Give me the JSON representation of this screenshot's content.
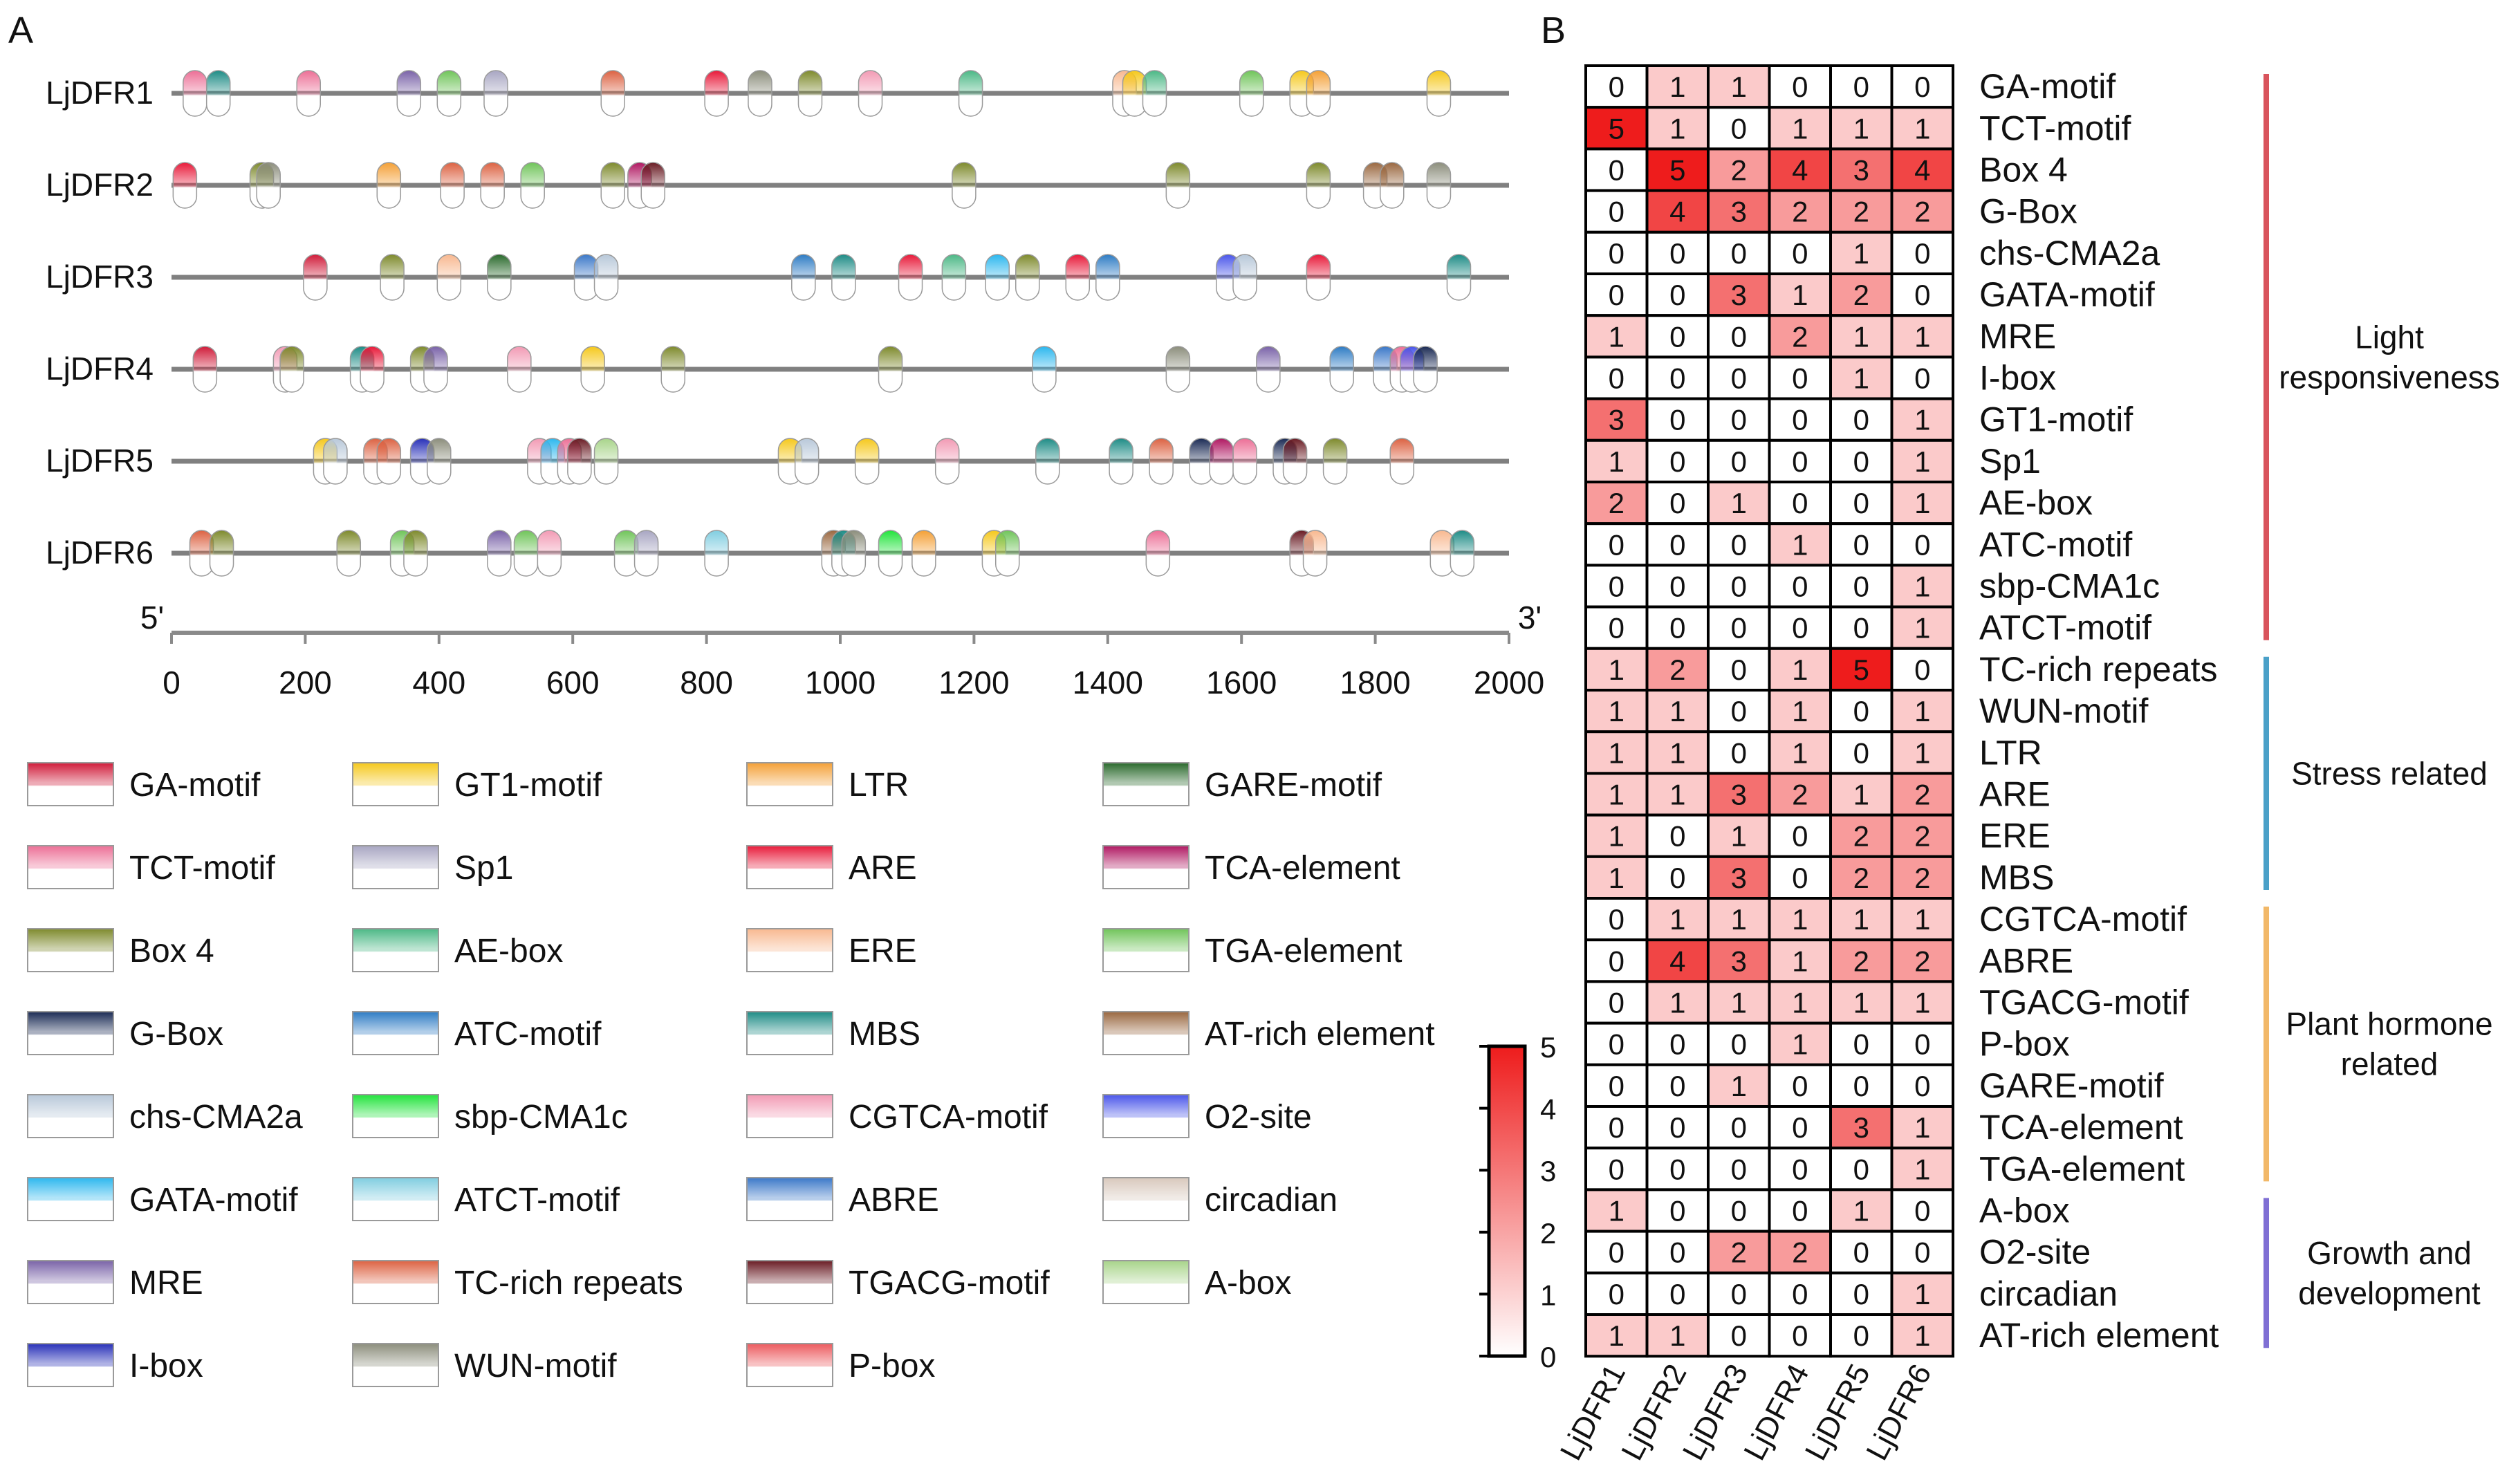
{
  "chart_data": [
    {
      "panel": "A",
      "type": "scatter",
      "description_kind": "cis-element positions along promoter",
      "genes": [
        "LjDFR1",
        "LjDFR2",
        "LjDFR3",
        "LjDFR4",
        "LjDFR5",
        "LjDFR6"
      ],
      "axis": {
        "left_end": "5'",
        "right_end": "3'",
        "min": 0,
        "max": 2000,
        "ticks": [
          0,
          200,
          400,
          600,
          800,
          1000,
          1200,
          1400,
          1600,
          1800,
          2000
        ]
      },
      "elements": [
        {
          "name": "GA-motif",
          "color": "#d01c3a"
        },
        {
          "name": "TCT-motif",
          "color": "#ec6f96"
        },
        {
          "name": "Box 4",
          "color": "#7e8a2c"
        },
        {
          "name": "G-Box",
          "color": "#1b2b55"
        },
        {
          "name": "chs-CMA2a",
          "color": "#b8c8d9"
        },
        {
          "name": "GATA-motif",
          "color": "#2cb7ee"
        },
        {
          "name": "MRE",
          "color": "#7a63a8"
        },
        {
          "name": "I-box",
          "color": "#2830b8"
        },
        {
          "name": "GT1-motif",
          "color": "#f5c81c"
        },
        {
          "name": "Sp1",
          "color": "#a8a6c2"
        },
        {
          "name": "AE-box",
          "color": "#4cb886"
        },
        {
          "name": "ATC-motif",
          "color": "#2e7cc4"
        },
        {
          "name": "sbp-CMA1c",
          "color": "#22e33c"
        },
        {
          "name": "ATCT-motif",
          "color": "#80cde0"
        },
        {
          "name": "TC-rich repeats",
          "color": "#dc6242"
        },
        {
          "name": "WUN-motif",
          "color": "#8c8e7c"
        },
        {
          "name": "LTR",
          "color": "#f4a036"
        },
        {
          "name": "ARE",
          "color": "#e81a3a"
        },
        {
          "name": "ERE",
          "color": "#f8b890"
        },
        {
          "name": "MBS",
          "color": "#1e8c86"
        },
        {
          "name": "CGTCA-motif",
          "color": "#f29ab4"
        },
        {
          "name": "ABRE",
          "color": "#3b78c8"
        },
        {
          "name": "TGACG-motif",
          "color": "#6a1c24"
        },
        {
          "name": "P-box",
          "color": "#ec5a5e"
        },
        {
          "name": "GARE-motif",
          "color": "#2a6a2c"
        },
        {
          "name": "TCA-element",
          "color": "#b01862"
        },
        {
          "name": "TGA-element",
          "color": "#70c45a"
        },
        {
          "name": "AT-rich element",
          "color": "#9a6840"
        },
        {
          "name": "O2-site",
          "color": "#4a56ea"
        },
        {
          "name": "circadian",
          "color": "#d8c8bc"
        },
        {
          "name": "A-box",
          "color": "#a8d48a"
        }
      ],
      "tracks": [
        {
          "gene": "LjDFR1",
          "sites": [
            {
              "pos": 35,
              "el": "TCT-motif"
            },
            {
              "pos": 70,
              "el": "MBS"
            },
            {
              "pos": 205,
              "el": "TCT-motif"
            },
            {
              "pos": 355,
              "el": "MRE"
            },
            {
              "pos": 415,
              "el": "TGA-element"
            },
            {
              "pos": 485,
              "el": "Sp1"
            },
            {
              "pos": 660,
              "el": "TC-rich repeats"
            },
            {
              "pos": 815,
              "el": "ARE"
            },
            {
              "pos": 880,
              "el": "WUN-motif"
            },
            {
              "pos": 955,
              "el": "Box 4"
            },
            {
              "pos": 1045,
              "el": "CGTCA-motif"
            },
            {
              "pos": 1195,
              "el": "AE-box"
            },
            {
              "pos": 1425,
              "el": "ERE"
            },
            {
              "pos": 1440,
              "el": "GT1-motif"
            },
            {
              "pos": 1470,
              "el": "AE-box"
            },
            {
              "pos": 1615,
              "el": "TGA-element"
            },
            {
              "pos": 1690,
              "el": "GT1-motif"
            },
            {
              "pos": 1715,
              "el": "LTR"
            },
            {
              "pos": 1895,
              "el": "GT1-motif"
            }
          ]
        },
        {
          "gene": "LjDFR2",
          "sites": [
            {
              "pos": 20,
              "el": "ARE"
            },
            {
              "pos": 135,
              "el": "Box 4"
            },
            {
              "pos": 145,
              "el": "WUN-motif"
            },
            {
              "pos": 325,
              "el": "LTR"
            },
            {
              "pos": 420,
              "el": "TC-rich repeats"
            },
            {
              "pos": 480,
              "el": "TC-rich repeats"
            },
            {
              "pos": 540,
              "el": "TGA-element"
            },
            {
              "pos": 660,
              "el": "Box 4"
            },
            {
              "pos": 700,
              "el": "TCA-element"
            },
            {
              "pos": 720,
              "el": "TGACG-motif"
            },
            {
              "pos": 1185,
              "el": "Box 4"
            },
            {
              "pos": 1505,
              "el": "Box 4"
            },
            {
              "pos": 1715,
              "el": "Box 4"
            },
            {
              "pos": 1800,
              "el": "AT-rich element"
            },
            {
              "pos": 1825,
              "el": "AT-rich element"
            },
            {
              "pos": 1895,
              "el": "WUN-motif"
            }
          ]
        },
        {
          "gene": "LjDFR3",
          "sites": [
            {
              "pos": 215,
              "el": "GA-motif"
            },
            {
              "pos": 330,
              "el": "Box 4"
            },
            {
              "pos": 415,
              "el": "ERE"
            },
            {
              "pos": 490,
              "el": "GARE-motif"
            },
            {
              "pos": 620,
              "el": "ABRE"
            },
            {
              "pos": 650,
              "el": "chs-CMA2a"
            },
            {
              "pos": 945,
              "el": "ATC-motif"
            },
            {
              "pos": 1005,
              "el": "MBS"
            },
            {
              "pos": 1105,
              "el": "ARE"
            },
            {
              "pos": 1170,
              "el": "AE-box"
            },
            {
              "pos": 1235,
              "el": "GATA-motif"
            },
            {
              "pos": 1280,
              "el": "Box 4"
            },
            {
              "pos": 1355,
              "el": "ARE"
            },
            {
              "pos": 1400,
              "el": "ATC-motif"
            },
            {
              "pos": 1580,
              "el": "O2-site"
            },
            {
              "pos": 1605,
              "el": "chs-CMA2a"
            },
            {
              "pos": 1715,
              "el": "ARE"
            },
            {
              "pos": 1925,
              "el": "MBS"
            }
          ]
        },
        {
          "gene": "LjDFR4",
          "sites": [
            {
              "pos": 50,
              "el": "GA-motif"
            },
            {
              "pos": 170,
              "el": "CGTCA-motif"
            },
            {
              "pos": 180,
              "el": "Box 4"
            },
            {
              "pos": 285,
              "el": "MBS"
            },
            {
              "pos": 300,
              "el": "ARE"
            },
            {
              "pos": 375,
              "el": "Box 4"
            },
            {
              "pos": 395,
              "el": "MRE"
            },
            {
              "pos": 520,
              "el": "CGTCA-motif"
            },
            {
              "pos": 630,
              "el": "GT1-motif"
            },
            {
              "pos": 750,
              "el": "Box 4"
            },
            {
              "pos": 1075,
              "el": "Box 4"
            },
            {
              "pos": 1305,
              "el": "GATA-motif"
            },
            {
              "pos": 1505,
              "el": "WUN-motif"
            },
            {
              "pos": 1640,
              "el": "MRE"
            },
            {
              "pos": 1750,
              "el": "ATC-motif"
            },
            {
              "pos": 1815,
              "el": "ABRE"
            },
            {
              "pos": 1840,
              "el": "TCT-motif"
            },
            {
              "pos": 1855,
              "el": "O2-site"
            },
            {
              "pos": 1875,
              "el": "G-Box"
            }
          ]
        },
        {
          "gene": "LjDFR5",
          "sites": [
            {
              "pos": 230,
              "el": "GT1-motif"
            },
            {
              "pos": 245,
              "el": "chs-CMA2a"
            },
            {
              "pos": 305,
              "el": "TC-rich repeats"
            },
            {
              "pos": 325,
              "el": "TC-rich repeats"
            },
            {
              "pos": 375,
              "el": "I-box"
            },
            {
              "pos": 400,
              "el": "WUN-motif"
            },
            {
              "pos": 550,
              "el": "CGTCA-motif"
            },
            {
              "pos": 570,
              "el": "GATA-motif"
            },
            {
              "pos": 595,
              "el": "TCT-motif"
            },
            {
              "pos": 610,
              "el": "TGACG-motif"
            },
            {
              "pos": 650,
              "el": "A-box"
            },
            {
              "pos": 925,
              "el": "GT1-motif"
            },
            {
              "pos": 950,
              "el": "chs-CMA2a"
            },
            {
              "pos": 1040,
              "el": "GT1-motif"
            },
            {
              "pos": 1160,
              "el": "CGTCA-motif"
            },
            {
              "pos": 1310,
              "el": "MBS"
            },
            {
              "pos": 1420,
              "el": "MBS"
            },
            {
              "pos": 1480,
              "el": "TC-rich repeats"
            },
            {
              "pos": 1540,
              "el": "G-Box"
            },
            {
              "pos": 1570,
              "el": "TCA-element"
            },
            {
              "pos": 1605,
              "el": "TCT-motif"
            },
            {
              "pos": 1665,
              "el": "G-Box"
            },
            {
              "pos": 1680,
              "el": "TGACG-motif"
            },
            {
              "pos": 1740,
              "el": "Box 4"
            },
            {
              "pos": 1840,
              "el": "TC-rich repeats"
            }
          ]
        },
        {
          "gene": "LjDFR6",
          "sites": [
            {
              "pos": 45,
              "el": "TC-rich repeats"
            },
            {
              "pos": 75,
              "el": "Box 4"
            },
            {
              "pos": 265,
              "el": "Box 4"
            },
            {
              "pos": 345,
              "el": "TGA-element"
            },
            {
              "pos": 365,
              "el": "Box 4"
            },
            {
              "pos": 490,
              "el": "MRE"
            },
            {
              "pos": 530,
              "el": "TGA-element"
            },
            {
              "pos": 565,
              "el": "CGTCA-motif"
            },
            {
              "pos": 680,
              "el": "TGA-element"
            },
            {
              "pos": 710,
              "el": "Sp1"
            },
            {
              "pos": 815,
              "el": "ATCT-motif"
            },
            {
              "pos": 990,
              "el": "AT-rich element"
            },
            {
              "pos": 1005,
              "el": "MBS"
            },
            {
              "pos": 1020,
              "el": "WUN-motif"
            },
            {
              "pos": 1075,
              "el": "sbp-CMA1c"
            },
            {
              "pos": 1125,
              "el": "LTR"
            },
            {
              "pos": 1230,
              "el": "GT1-motif"
            },
            {
              "pos": 1250,
              "el": "TGA-element"
            },
            {
              "pos": 1475,
              "el": "TCT-motif"
            },
            {
              "pos": 1690,
              "el": "TGACG-motif"
            },
            {
              "pos": 1710,
              "el": "ERE"
            },
            {
              "pos": 1900,
              "el": "ERE"
            },
            {
              "pos": 1930,
              "el": "MBS"
            }
          ]
        }
      ]
    },
    {
      "panel": "B",
      "type": "heatmap",
      "columns": [
        "LjDFR1",
        "LjDFR2",
        "LjDFR3",
        "LjDFR4",
        "LjDFR5",
        "LjDFR6"
      ],
      "rows": [
        "GA-motif",
        "TCT-motif",
        "Box 4",
        "G-Box",
        "chs-CMA2a",
        "GATA-motif",
        "MRE",
        "I-box",
        "GT1-motif",
        "Sp1",
        "AE-box",
        "ATC-motif",
        "sbp-CMA1c",
        "ATCT-motif",
        "TC-rich repeats",
        "WUN-motif",
        "LTR",
        "ARE",
        "ERE",
        "MBS",
        "CGTCA-motif",
        "ABRE",
        "TGACG-motif",
        "P-box",
        "GARE-motif",
        "TCA-element",
        "TGA-element",
        "A-box",
        "O2-site",
        "circadian",
        "AT-rich element"
      ],
      "values": [
        [
          0,
          1,
          1,
          0,
          0,
          0
        ],
        [
          5,
          1,
          0,
          1,
          1,
          1
        ],
        [
          0,
          5,
          2,
          4,
          3,
          4
        ],
        [
          0,
          4,
          3,
          2,
          2,
          2
        ],
        [
          0,
          0,
          0,
          0,
          1,
          0
        ],
        [
          0,
          0,
          3,
          1,
          2,
          0
        ],
        [
          1,
          0,
          0,
          2,
          1,
          1
        ],
        [
          0,
          0,
          0,
          0,
          1,
          0
        ],
        [
          3,
          0,
          0,
          0,
          0,
          1
        ],
        [
          1,
          0,
          0,
          0,
          0,
          1
        ],
        [
          2,
          0,
          1,
          0,
          0,
          1
        ],
        [
          0,
          0,
          0,
          1,
          0,
          0
        ],
        [
          0,
          0,
          0,
          0,
          0,
          1
        ],
        [
          0,
          0,
          0,
          0,
          0,
          1
        ],
        [
          1,
          2,
          0,
          1,
          5,
          0
        ],
        [
          1,
          1,
          0,
          1,
          0,
          1
        ],
        [
          1,
          1,
          0,
          1,
          0,
          1
        ],
        [
          1,
          1,
          3,
          2,
          1,
          2
        ],
        [
          1,
          0,
          1,
          0,
          2,
          2
        ],
        [
          1,
          0,
          3,
          0,
          2,
          2
        ],
        [
          0,
          1,
          1,
          1,
          1,
          1
        ],
        [
          0,
          4,
          3,
          1,
          2,
          2
        ],
        [
          0,
          1,
          1,
          1,
          1,
          1
        ],
        [
          0,
          0,
          0,
          1,
          0,
          0
        ],
        [
          0,
          0,
          1,
          0,
          0,
          0
        ],
        [
          0,
          0,
          0,
          0,
          3,
          1
        ],
        [
          0,
          0,
          0,
          0,
          0,
          1
        ],
        [
          1,
          0,
          0,
          0,
          1,
          0
        ],
        [
          0,
          0,
          2,
          2,
          0,
          0
        ],
        [
          0,
          0,
          0,
          0,
          0,
          1
        ],
        [
          1,
          1,
          0,
          0,
          0,
          1
        ]
      ],
      "colorbar": {
        "min": 0,
        "max": 5,
        "ticks": [
          "0",
          "1",
          "2",
          "3",
          "4",
          "5"
        ],
        "low_color": "#ffffff",
        "high_color": "#ee1c1c"
      },
      "groups": [
        {
          "label_lines": [
            "Light",
            "responsiveness"
          ],
          "first_row": 0,
          "last_row": 13,
          "color": "#d9545c"
        },
        {
          "label_lines": [
            "Stress related"
          ],
          "first_row": 14,
          "last_row": 19,
          "color": "#4aa0c8"
        },
        {
          "label_lines": [
            "Plant hormone",
            "related"
          ],
          "first_row": 20,
          "last_row": 26,
          "color": "#f2b868"
        },
        {
          "label_lines": [
            "Growth and",
            "development"
          ],
          "first_row": 27,
          "last_row": 30,
          "color": "#7f6fd4"
        }
      ]
    }
  ],
  "labels": {
    "panel_a": "A",
    "panel_b": "B"
  }
}
